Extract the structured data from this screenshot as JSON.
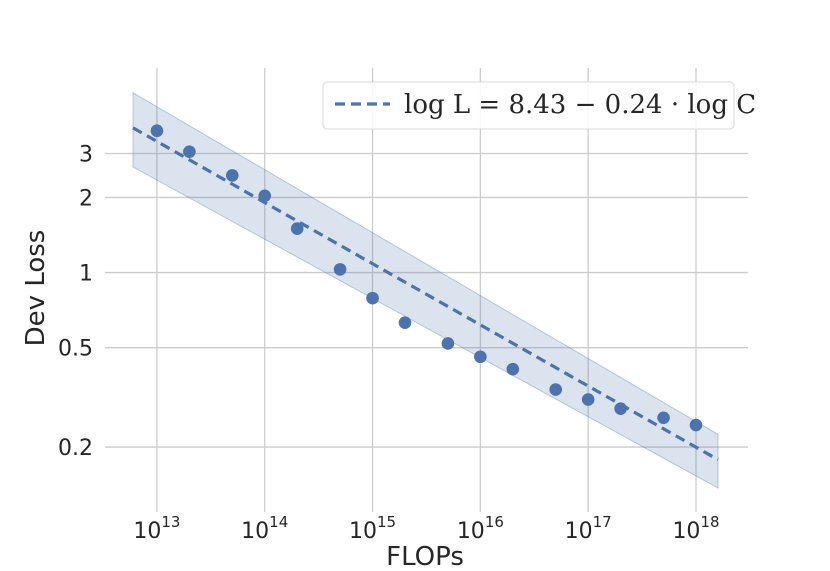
{
  "chart_data": {
    "type": "scatter",
    "title": "",
    "xlabel": "FLOPs",
    "ylabel": "Dev Loss",
    "xscale": "log",
    "yscale": "log",
    "xlim": [
      6000000000000.0,
      1.6e+18
    ],
    "ylim": [
      0.125,
      5.8
    ],
    "x_ticks": [
      {
        "value": 10000000000000.0,
        "base": "10",
        "exp": "13"
      },
      {
        "value": 100000000000000.0,
        "base": "10",
        "exp": "14"
      },
      {
        "value": 1000000000000000.0,
        "base": "10",
        "exp": "15"
      },
      {
        "value": 1e+16,
        "base": "10",
        "exp": "16"
      },
      {
        "value": 1e+17,
        "base": "10",
        "exp": "17"
      },
      {
        "value": 1e+18,
        "base": "10",
        "exp": "18"
      }
    ],
    "y_ticks": [
      {
        "value": 0.2,
        "label": "0.2"
      },
      {
        "value": 0.5,
        "label": "0.5"
      },
      {
        "value": 1,
        "label": "1"
      },
      {
        "value": 2,
        "label": "2"
      },
      {
        "value": 3,
        "label": "3"
      }
    ],
    "grid": true,
    "series": [
      {
        "name": "Dev Loss",
        "kind": "scatter",
        "color": "#4c72b0",
        "x": [
          10000000000000.0,
          20000000000000.0,
          50000000000000.0,
          100000000000000.0,
          200000000000000.0,
          500000000000000.0,
          1000000000000000.0,
          2000000000000000.0,
          5000000000000000.0,
          1e+16,
          2e+16,
          5e+16,
          1e+17,
          2e+17,
          5e+17,
          1e+18
        ],
        "y": [
          3.7,
          3.05,
          2.45,
          2.03,
          1.5,
          1.03,
          0.79,
          0.63,
          0.52,
          0.46,
          0.41,
          0.34,
          0.31,
          0.285,
          0.262,
          0.245
        ]
      },
      {
        "name": "fit",
        "kind": "line",
        "style": "dashed",
        "color": "#4c72b0",
        "x": [
          6000000000000.0,
          1.6e+18
        ],
        "y": [
          3.8,
          0.178
        ]
      },
      {
        "name": "confidence band",
        "kind": "band",
        "color": "#4c72b0",
        "x": [
          6000000000000.0,
          1.6e+18
        ],
        "upper": [
          5.25,
          0.225
        ],
        "lower": [
          2.65,
          0.137
        ]
      }
    ],
    "legend": {
      "position": "top-right",
      "entries": [
        {
          "label": "log L = 8.43 − 0.24 · log C"
        }
      ]
    }
  }
}
